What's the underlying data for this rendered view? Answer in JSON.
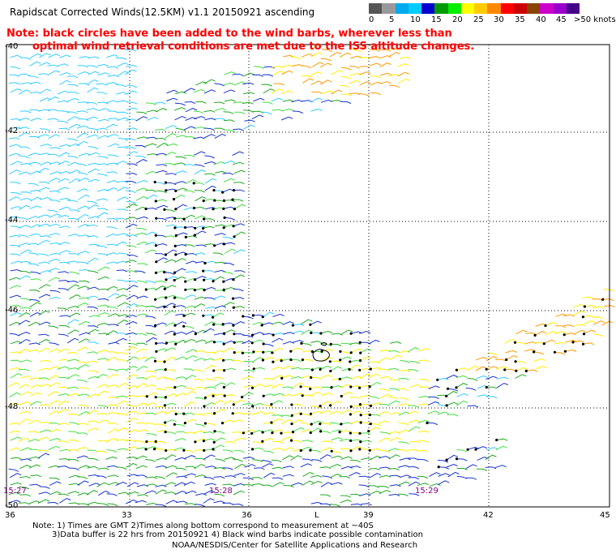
{
  "title": "Rapidscat Corrected Winds(12.5KM) v1.1 20150921 ascending",
  "note_line1": "Note: black circles have been added to the wind barbs, wherever less than",
  "note_line2": "optimal wind retrieval conditions are met due to the ISS altitude changes.",
  "legend": {
    "labels": [
      "0",
      "5",
      "10",
      "15",
      "20",
      "25",
      "30",
      "35",
      "40",
      "45",
      ">50 knots"
    ],
    "colors": [
      "#555555",
      "#999999",
      "#00aaee",
      "#00ccff",
      "#0000cc",
      "#009900",
      "#00ee00",
      "#ffff00",
      "#ffcc00",
      "#ff8800",
      "#ff0000",
      "#cc0000",
      "#884400",
      "#cc00cc",
      "#9900cc",
      "#440088"
    ]
  },
  "lat_labels": [
    "-40",
    "-42",
    "-44",
    "-46",
    "-48",
    "-50"
  ],
  "lon_labels": [
    "36",
    "33",
    "36",
    "L",
    "39",
    "42",
    "45"
  ],
  "time_labels": [
    "15:27",
    "15:28",
    "15:29"
  ],
  "footer": {
    "line1": "Note: 1) Times are GMT 2)Times along bottom correspond to measurement at ~40S",
    "line2": "3)Data buffer is 22 hrs from 20150921 4) Black wind barbs indicate possible contamination",
    "line3": "NOAA/NESDIS/Center for Satellite Applications and Research"
  }
}
